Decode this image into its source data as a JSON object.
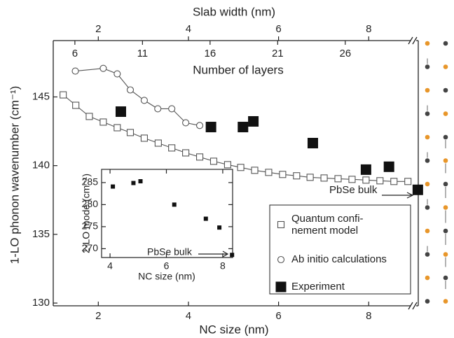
{
  "chart_data": [
    {
      "type": "scatter",
      "xlabel": "NC size (nm)",
      "ylabel": "1-LO phonon wavenumber (cm⁻¹)",
      "x2label": "Slab width (nm)",
      "x3label": "Number of layers",
      "xlim": [
        1.0,
        9.1
      ],
      "xticks": [
        2,
        4,
        6,
        8
      ],
      "ylim": [
        129.8,
        149.1
      ],
      "yticks": [
        130,
        135,
        140,
        145
      ],
      "x2lim": [
        1.0,
        9.1
      ],
      "x2ticks": [
        2,
        4,
        6,
        8
      ],
      "x3lim": [
        4.4,
        31.4
      ],
      "x3ticks": [
        6,
        11,
        16,
        21,
        26
      ],
      "annotation": "PbSe bulk",
      "series": [
        {
          "name": "Quantum confi-\nnement model",
          "color": "#555555",
          "marker": "open-square",
          "line": true,
          "x": [
            1.22,
            1.5,
            1.8,
            2.11,
            2.42,
            2.71,
            3.02,
            3.33,
            3.63,
            3.94,
            4.25,
            4.56,
            4.87,
            5.16,
            5.47,
            5.78,
            6.09,
            6.4,
            6.7,
            7.01,
            7.32,
            7.63,
            7.94,
            8.25,
            8.56,
            8.87
          ],
          "values": [
            145.15,
            144.39,
            143.58,
            143.17,
            142.76,
            142.41,
            142.0,
            141.64,
            141.29,
            140.93,
            140.63,
            140.32,
            140.07,
            139.87,
            139.66,
            139.51,
            139.36,
            139.26,
            139.15,
            139.1,
            139.05,
            139.0,
            138.95,
            138.9,
            138.85,
            138.85
          ]
        },
        {
          "name": "Ab initio calculations",
          "color": "#555555",
          "marker": "open-circle",
          "line": true,
          "x": [
            1.49,
            2.11,
            2.42,
            2.71,
            3.02,
            3.32,
            3.63,
            3.94,
            4.25
          ],
          "values": [
            146.88,
            147.08,
            146.68,
            145.51,
            144.75,
            144.14,
            144.14,
            143.12,
            142.92
          ]
        },
        {
          "name": "Experiment",
          "color": "#111111",
          "marker": "filled-square",
          "line": false,
          "x": [
            2.5,
            4.5,
            5.21,
            5.44,
            6.76,
            7.94,
            8.45,
            9.09
          ],
          "values": [
            143.93,
            142.81,
            142.81,
            143.22,
            141.64,
            139.71,
            139.92,
            138.24
          ]
        }
      ]
    },
    {
      "type": "scatter",
      "xlabel": "NC size (nm)",
      "ylabel": "2-LO mode (cm⁻¹)",
      "xlim": [
        3.7,
        8.35
      ],
      "xticks": [
        4,
        6,
        8
      ],
      "ylim": [
        268,
        288
      ],
      "yticks": [
        270,
        275,
        280,
        285
      ],
      "annotation": "PbSe bulk",
      "series": [
        {
          "color": "#111111",
          "marker": "filled-square",
          "x": [
            4.1,
            4.83,
            5.08,
            6.28,
            7.4,
            7.88,
            8.33
          ],
          "values": [
            284.1,
            284.9,
            285.3,
            280.0,
            276.8,
            274.8,
            268.6
          ]
        }
      ]
    }
  ]
}
